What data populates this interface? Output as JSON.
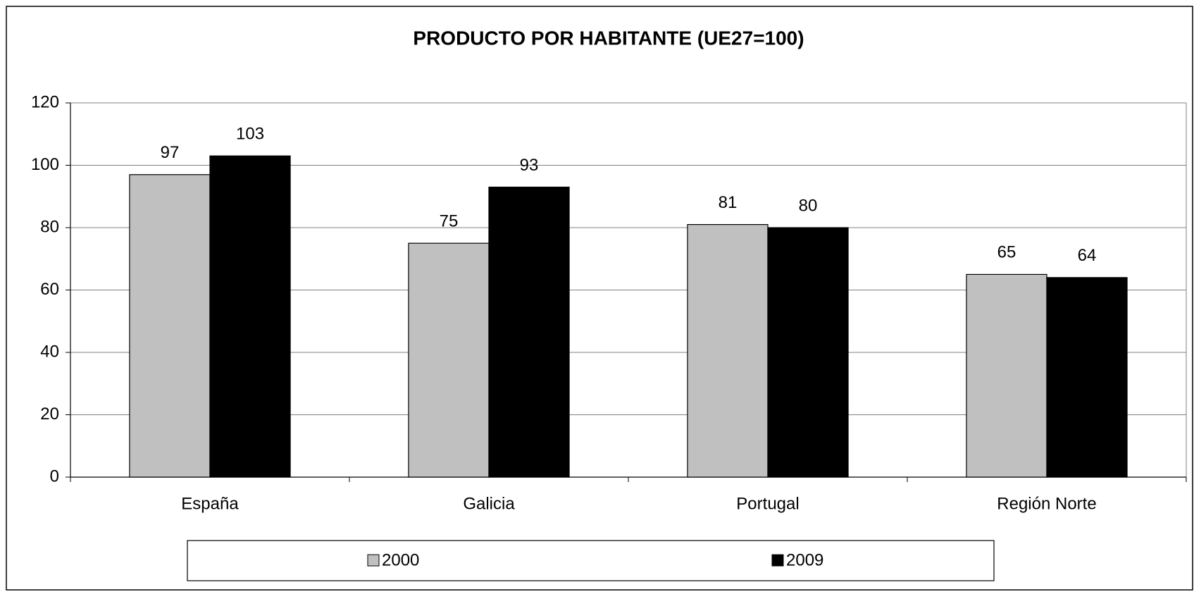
{
  "chart_data": {
    "type": "bar",
    "title": "PRODUCTO POR HABITANTE (UE27=100)",
    "categories": [
      "España",
      "Galicia",
      "Portugal",
      "Región Norte"
    ],
    "series": [
      {
        "name": "2000",
        "color": "#c0c0c0",
        "values": [
          97,
          75,
          81,
          65
        ]
      },
      {
        "name": "2009",
        "color": "#000000",
        "values": [
          103,
          93,
          80,
          64
        ]
      }
    ],
    "ylim": [
      0,
      120
    ],
    "yticks": [
      0,
      20,
      40,
      60,
      80,
      100,
      120
    ],
    "grid": true,
    "legend": "bottom"
  }
}
